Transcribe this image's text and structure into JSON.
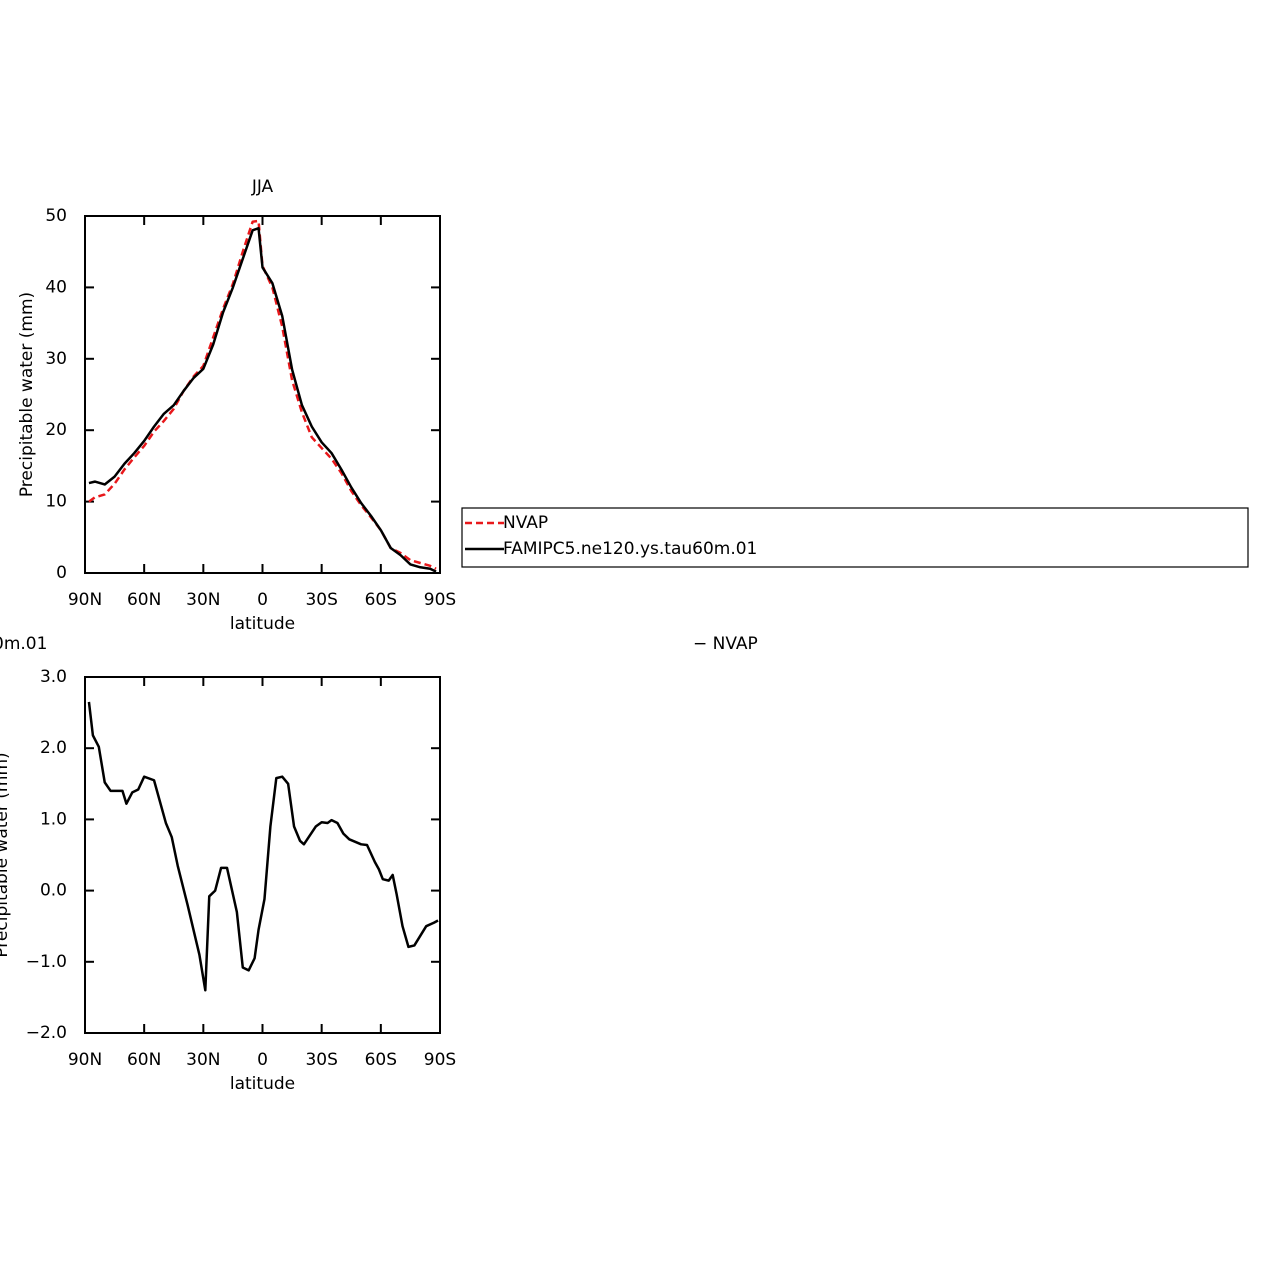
{
  "chart_data": [
    {
      "type": "line",
      "title": "JJA",
      "xlabel": "latitude",
      "ylabel": "Precipitable water (mm)",
      "xlim": [
        90,
        -90
      ],
      "xticks": [
        {
          "value": 90,
          "label": "90N"
        },
        {
          "value": 60,
          "label": "60N"
        },
        {
          "value": 30,
          "label": "30N"
        },
        0,
        {
          "value": -30,
          "label": "30S"
        },
        {
          "value": -60,
          "label": "60S"
        },
        {
          "value": -90,
          "label": "90S"
        }
      ],
      "ylim": [
        0,
        50
      ],
      "yticks": [
        0,
        10,
        20,
        30,
        40,
        50
      ],
      "x": [
        88,
        85,
        80,
        75,
        70,
        65,
        60,
        55,
        50,
        45,
        40,
        35,
        30,
        25,
        20,
        15,
        10,
        5,
        2,
        0,
        -5,
        -10,
        -15,
        -20,
        -25,
        -30,
        -35,
        -40,
        -45,
        -50,
        -55,
        -60,
        -65,
        -70,
        -75,
        -80,
        -85,
        -88
      ],
      "series": [
        {
          "name": "NVAP",
          "color": "#e8181b",
          "dash": true,
          "values": [
            10,
            10.6,
            11,
            12.5,
            14.5,
            16.2,
            17.8,
            19.8,
            21.3,
            23,
            25.5,
            27.5,
            29,
            33,
            37,
            40.5,
            45,
            49.2,
            49.3,
            43,
            40,
            34.5,
            27,
            22.5,
            19,
            17.5,
            16,
            14,
            11.5,
            9.5,
            7.8,
            6,
            3.5,
            2.8,
            1.8,
            1.4,
            1,
            0.6
          ]
        },
        {
          "name": "FAMIPC5.ne120.ys.tau60m.01",
          "color": "#000000",
          "dash": false,
          "values": [
            12.6,
            12.8,
            12.4,
            13.5,
            15.3,
            16.8,
            18.5,
            20.5,
            22.3,
            23.5,
            25.5,
            27.3,
            28.6,
            32,
            36.5,
            40,
            44,
            48,
            48.3,
            42.8,
            40.6,
            36,
            28.5,
            23.5,
            20.5,
            18.3,
            16.8,
            14.5,
            12,
            9.8,
            8,
            6,
            3.5,
            2.5,
            1.2,
            0.8,
            0.6,
            0.2
          ]
        }
      ]
    },
    {
      "type": "line",
      "title": "0m.01",
      "subtitle": "− NVAP",
      "xlabel": "latitude",
      "ylabel": "Precipitable water (mm)",
      "xlim": [
        90,
        -90
      ],
      "xticks": [
        {
          "value": 90,
          "label": "90N"
        },
        {
          "value": 60,
          "label": "60N"
        },
        {
          "value": 30,
          "label": "30N"
        },
        0,
        {
          "value": -30,
          "label": "30S"
        },
        {
          "value": -60,
          "label": "60S"
        },
        {
          "value": -90,
          "label": "90S"
        }
      ],
      "ylim": [
        -2,
        3
      ],
      "yticks": [
        {
          "value": -2,
          "label": "−2.0"
        },
        {
          "value": -1,
          "label": "−1.0"
        },
        {
          "value": 0,
          "label": "0.0"
        },
        {
          "value": 1,
          "label": "1.0"
        },
        {
          "value": 2,
          "label": "2.0"
        },
        {
          "value": 3,
          "label": "3.0"
        }
      ],
      "x": [
        88,
        86,
        83,
        80,
        77,
        71,
        69,
        66,
        63,
        60,
        55,
        49,
        46,
        43,
        38,
        32,
        29,
        27,
        24,
        21,
        18,
        13,
        10,
        7,
        4,
        2,
        -1,
        -4,
        -7,
        -10,
        -13,
        -16,
        -19,
        -21,
        -27,
        -30,
        -33,
        -35,
        -38,
        -41,
        -44,
        -50,
        -53,
        -57,
        -59,
        -61,
        -64,
        -66,
        -68,
        -71,
        -74,
        -77,
        -83,
        -87,
        -89
      ],
      "series": [
        {
          "color": "#000000",
          "dash": false,
          "values": [
            2.65,
            2.18,
            2.02,
            1.52,
            1.4,
            1.4,
            1.22,
            1.38,
            1.42,
            1.6,
            1.55,
            0.95,
            0.75,
            0.35,
            -0.2,
            -0.9,
            -1.4,
            -0.08,
            0,
            0.32,
            0.32,
            -0.3,
            -1.08,
            -1.12,
            -0.95,
            -0.55,
            -0.12,
            0.9,
            1.58,
            1.6,
            1.5,
            0.9,
            0.7,
            0.65,
            0.9,
            0.96,
            0.95,
            0.99,
            0.95,
            0.8,
            0.72,
            0.65,
            0.64,
            0.4,
            0.3,
            0.16,
            0.14,
            0.22,
            -0.05,
            -0.5,
            -0.79,
            -0.77,
            -0.5,
            -0.45,
            -0.42
          ]
        }
      ]
    }
  ]
}
